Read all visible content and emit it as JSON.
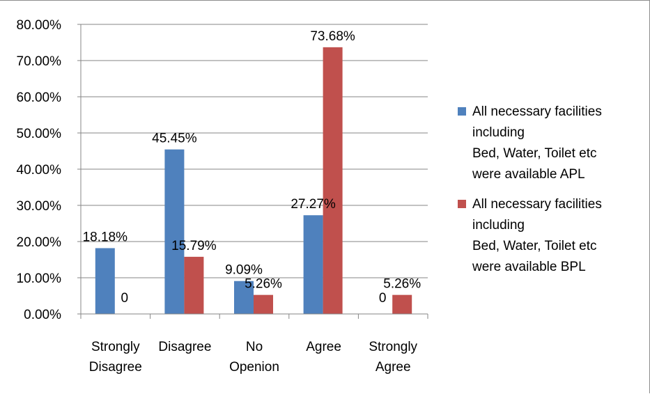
{
  "chart_data": {
    "type": "bar",
    "categories": [
      [
        "Strongly",
        "Disagree"
      ],
      [
        "Disagree"
      ],
      [
        "No",
        "Openion"
      ],
      [
        "Agree"
      ],
      [
        "Strongly",
        "Agree"
      ]
    ],
    "ylim": [
      0,
      0.8
    ],
    "y_ticks": [
      "0.00%",
      "10.00%",
      "20.00%",
      "30.00%",
      "40.00%",
      "50.00%",
      "60.00%",
      "70.00%",
      "80.00%"
    ],
    "grid": true,
    "legend_position": "right",
    "series": [
      {
        "name": "All necessary facilities including Bed, Water, Toilet etc were available APL",
        "legend_lines": [
          "All necessary facilities",
          "including",
          "Bed, Water, Toilet etc",
          "were available APL"
        ],
        "color": "#4F81BD",
        "values": [
          0.1818,
          0.4545,
          0.0909,
          0.2727,
          0
        ],
        "labels": [
          "18.18%",
          "45.45%",
          "9.09%",
          "27.27%",
          "0"
        ]
      },
      {
        "name": "All necessary facilities including Bed, Water, Toilet etc were available BPL",
        "legend_lines": [
          "All necessary facilities",
          "including",
          "Bed, Water, Toilet etc",
          "were available BPL"
        ],
        "color": "#C0504D",
        "values": [
          0,
          0.1579,
          0.0526,
          0.7368,
          0.0526
        ],
        "labels": [
          "0",
          "15.79%",
          "5.26%",
          "73.68%",
          "5.26%"
        ]
      }
    ]
  }
}
